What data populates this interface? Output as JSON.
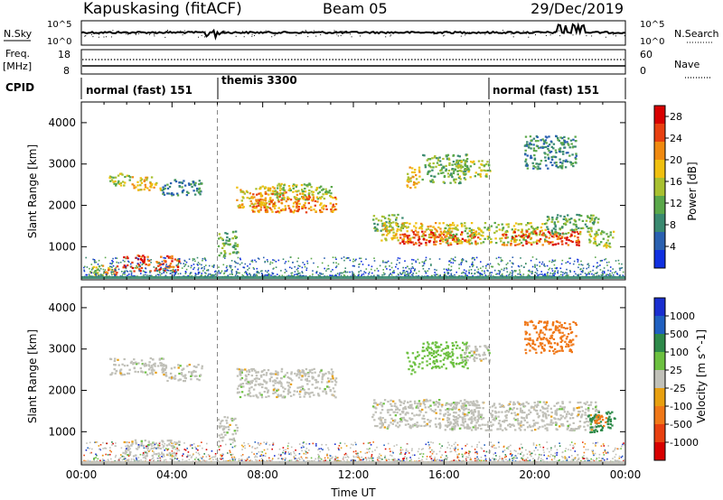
{
  "header": {
    "station": "Kapuskasing (fitACF)",
    "beam": "Beam 05",
    "date": "29/Dec/2019"
  },
  "noise_panel": {
    "left_label": "N.Sky",
    "right_label": "N.Search",
    "ticks": [
      "10^5",
      "10^0"
    ]
  },
  "freq_panel": {
    "left_label_1": "Freq.",
    "left_label_2": "[MHz]",
    "left_ticks": [
      "18",
      "8"
    ],
    "right_label": "Nave",
    "right_ticks": [
      "60",
      "0"
    ]
  },
  "cpid": {
    "label": "CPID",
    "segments": [
      {
        "name": "normal (fast) 151",
        "start_h": 0,
        "end_h": 6
      },
      {
        "name": "themis 3300",
        "start_h": 6,
        "end_h": 18
      },
      {
        "name": "normal (fast) 151",
        "start_h": 18,
        "end_h": 24
      }
    ]
  },
  "colors": {
    "power": [
      "#1030e0",
      "#2a60b0",
      "#3a8a70",
      "#5aa84a",
      "#a8c030",
      "#f0c010",
      "#f08a10",
      "#e84010",
      "#d80000"
    ],
    "velocity": [
      "#1a2fd0",
      "#2060c0",
      "#2e8a4a",
      "#6cc040",
      "#c0c0b8",
      "#e8a010",
      "#f07818",
      "#e84010",
      "#d80000"
    ]
  },
  "chart_data": [
    {
      "type": "heatmap",
      "name": "power",
      "xlabel": "",
      "ylabel": "Slant Range [km]",
      "xlim": [
        0,
        24
      ],
      "ylim": [
        200,
        4500
      ],
      "yticks": [
        "1000",
        "2000",
        "3000",
        "4000"
      ],
      "colorbar": {
        "label": "Power [dB]",
        "ticks": [
          "4",
          "8",
          "12",
          "16",
          "20",
          "24",
          "28"
        ],
        "range": [
          0,
          30
        ]
      },
      "regions": [
        {
          "t": [
            0.3,
            0.9
          ],
          "r": [
            320,
            560
          ],
          "level": 4
        },
        {
          "t": [
            0.9,
            1.6
          ],
          "r": [
            320,
            560
          ],
          "level": 6
        },
        {
          "t": [
            1.2,
            2.2
          ],
          "r": [
            2450,
            2800
          ],
          "level": 4
        },
        {
          "t": [
            2.2,
            3.5
          ],
          "r": [
            2380,
            2720
          ],
          "level": 5
        },
        {
          "t": [
            3.5,
            5.3
          ],
          "r": [
            2250,
            2650
          ],
          "level": 2
        },
        {
          "t": [
            1.8,
            4.3
          ],
          "r": [
            430,
            820
          ],
          "level": 7
        },
        {
          "t": [
            6.0,
            6.9
          ],
          "r": [
            780,
            1400
          ],
          "level": 3
        },
        {
          "t": [
            6.8,
            8.5
          ],
          "r": [
            1950,
            2480
          ],
          "level": 5
        },
        {
          "t": [
            7.5,
            9.8
          ],
          "r": [
            1850,
            2350
          ],
          "level": 6
        },
        {
          "t": [
            8.5,
            11.0
          ],
          "r": [
            2150,
            2550
          ],
          "level": 4
        },
        {
          "t": [
            9.5,
            11.2
          ],
          "r": [
            1850,
            2250
          ],
          "level": 6
        },
        {
          "t": [
            12.8,
            14.2
          ],
          "r": [
            1400,
            1800
          ],
          "level": 3
        },
        {
          "t": [
            13.2,
            16.5
          ],
          "r": [
            1150,
            1600
          ],
          "level": 5
        },
        {
          "t": [
            14.0,
            17.5
          ],
          "r": [
            1050,
            1400
          ],
          "level": 7
        },
        {
          "t": [
            16.0,
            20.5
          ],
          "r": [
            1100,
            1600
          ],
          "level": 4
        },
        {
          "t": [
            18.5,
            22.0
          ],
          "r": [
            1050,
            1400
          ],
          "level": 7
        },
        {
          "t": [
            20.5,
            22.8
          ],
          "r": [
            1300,
            1800
          ],
          "level": 3
        },
        {
          "t": [
            22.3,
            23.5
          ],
          "r": [
            1000,
            1400
          ],
          "level": 4
        },
        {
          "t": [
            14.3,
            14.9
          ],
          "r": [
            2400,
            2950
          ],
          "level": 5
        },
        {
          "t": [
            15.0,
            17.0
          ],
          "r": [
            2550,
            3250
          ],
          "level": 3
        },
        {
          "t": [
            16.6,
            18.0
          ],
          "r": [
            2700,
            3100
          ],
          "level": 4
        },
        {
          "t": [
            19.5,
            21.8
          ],
          "r": [
            2900,
            3700
          ],
          "level": 2
        }
      ]
    },
    {
      "type": "heatmap",
      "name": "velocity",
      "xlabel": "Time UT",
      "ylabel": "Slant Range [km]",
      "xlim": [
        0,
        24
      ],
      "ylim": [
        200,
        4500
      ],
      "xticks": [
        "00:00",
        "04:00",
        "08:00",
        "12:00",
        "16:00",
        "20:00",
        "00:00"
      ],
      "yticks": [
        "1000",
        "2000",
        "3000",
        "4000"
      ],
      "colorbar": {
        "label": "Velocity [m s^-1]",
        "ticks": [
          "1000",
          "500",
          "100",
          "25",
          "-25",
          "-100",
          "-500",
          "-1000"
        ]
      },
      "regions": [
        {
          "t": [
            1.2,
            3.6
          ],
          "r": [
            2400,
            2800
          ],
          "level": 4
        },
        {
          "t": [
            3.5,
            5.3
          ],
          "r": [
            2250,
            2650
          ],
          "level": 4
        },
        {
          "t": [
            1.8,
            4.3
          ],
          "r": [
            430,
            820
          ],
          "level": 4
        },
        {
          "t": [
            6.0,
            6.9
          ],
          "r": [
            780,
            1400
          ],
          "level": 4
        },
        {
          "t": [
            6.8,
            11.2
          ],
          "r": [
            1850,
            2550
          ],
          "level": 4
        },
        {
          "t": [
            12.8,
            17.5
          ],
          "r": [
            1100,
            1800
          ],
          "level": 4
        },
        {
          "t": [
            16.0,
            22.8
          ],
          "r": [
            1050,
            1750
          ],
          "level": 4
        },
        {
          "t": [
            22.3,
            23.5
          ],
          "r": [
            1000,
            1500
          ],
          "level": 2
        },
        {
          "t": [
            22.6,
            23.2
          ],
          "r": [
            1150,
            1450
          ],
          "level": 6
        },
        {
          "t": [
            14.3,
            14.9
          ],
          "r": [
            2400,
            2950
          ],
          "level": 3
        },
        {
          "t": [
            15.0,
            17.0
          ],
          "r": [
            2550,
            3200
          ],
          "level": 3
        },
        {
          "t": [
            16.6,
            18.0
          ],
          "r": [
            2700,
            3100
          ],
          "level": 4
        },
        {
          "t": [
            19.5,
            21.8
          ],
          "r": [
            2900,
            3700
          ],
          "level": 6
        }
      ]
    }
  ]
}
